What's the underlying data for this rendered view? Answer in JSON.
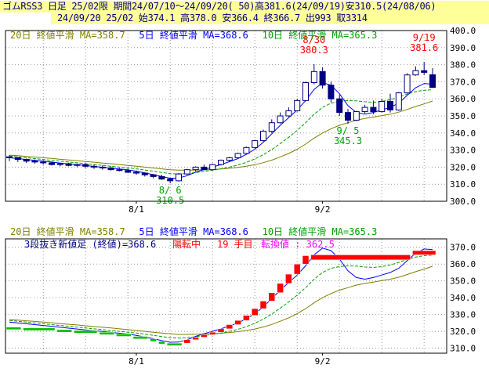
{
  "header": {
    "line1": "ゴムRSS3 日足 25/02限 期間24/07/10～24/09/20( 50)高381.6(24/09/19)安310.5(24/08/06)",
    "line2": "24/09/20 25/02 始374.1 高378.0 安366.4 終366.7 出993 取3314"
  },
  "colors": {
    "header_bg": "#ffff99",
    "grid": "#9a9a9a",
    "ma20": "#808000",
    "ma5": "#0000ff",
    "ma10": "#00a000",
    "candle_up": "#ffffff",
    "candle_down": "#000080",
    "up_block": "#ff0000",
    "down_block": "#00c000",
    "annot_red": "#ff0000",
    "annot_green": "#00a000",
    "tenkan": "#ff00ff"
  },
  "chart_data": [
    {
      "type": "candlestick",
      "legend": [
        {
          "label": "20日 終値平滑 MA=358.7",
          "color": "#808000"
        },
        {
          "label": "5日 終値平滑 MA=368.6",
          "color": "#0000ff"
        },
        {
          "label": "10日 終値平滑 MA=365.3",
          "color": "#00a000"
        }
      ],
      "x_ticks": [
        {
          "index": 15,
          "label": "8/1"
        },
        {
          "index": 37,
          "label": "9/2"
        }
      ],
      "y_ticks": [
        300.0,
        310.0,
        320.0,
        330.0,
        340.0,
        350.0,
        360.0,
        370.0,
        380.0,
        390.0,
        400.0
      ],
      "y_tick_labels": [
        "300.0",
        "310.0",
        "320.0",
        "330.0",
        "340.0",
        "350.0",
        "360.0",
        "370.0",
        "380.0",
        "390.0",
        "400.0"
      ],
      "ylim": [
        300,
        400
      ],
      "annotations": [
        {
          "date": "8/ 6",
          "value": "310.5",
          "index": 19,
          "kind": "low"
        },
        {
          "date": "8/30",
          "value": "380.3",
          "index": 36,
          "kind": "high"
        },
        {
          "date": "9/ 5",
          "value": "345.3",
          "index": 40,
          "kind": "low"
        },
        {
          "date": "9/19",
          "value": "381.6",
          "index": 49,
          "kind": "high"
        }
      ],
      "candles": [
        [
          326.0,
          327.0,
          323.5,
          325.5
        ],
        [
          325.5,
          326.0,
          323.0,
          324.5
        ],
        [
          324.5,
          325.0,
          322.5,
          323.5
        ],
        [
          323.5,
          324.5,
          322.0,
          323.0
        ],
        [
          323.0,
          324.0,
          321.5,
          322.5
        ],
        [
          322.5,
          323.0,
          321.0,
          321.5
        ],
        [
          321.5,
          322.5,
          320.5,
          322.0
        ],
        [
          322.0,
          322.5,
          320.5,
          321.0
        ],
        [
          321.0,
          322.0,
          320.0,
          321.5
        ],
        [
          321.5,
          322.0,
          319.5,
          320.5
        ],
        [
          320.5,
          321.5,
          319.0,
          320.0
        ],
        [
          320.0,
          321.0,
          318.5,
          319.5
        ],
        [
          319.5,
          320.5,
          318.0,
          318.5
        ],
        [
          318.5,
          319.5,
          317.5,
          318.0
        ],
        [
          318.0,
          319.0,
          316.5,
          317.0
        ],
        [
          317.0,
          318.0,
          315.5,
          316.5
        ],
        [
          316.5,
          317.0,
          314.5,
          315.5
        ],
        [
          315.5,
          316.0,
          313.5,
          314.5
        ],
        [
          314.5,
          315.5,
          312.5,
          313.0
        ],
        [
          313.0,
          314.0,
          310.5,
          312.0
        ],
        [
          312.0,
          316.5,
          311.5,
          316.0
        ],
        [
          316.0,
          319.0,
          315.5,
          318.5
        ],
        [
          318.5,
          320.5,
          317.5,
          320.0
        ],
        [
          320.0,
          321.5,
          319.0,
          318.5
        ],
        [
          318.5,
          322.0,
          318.0,
          321.5
        ],
        [
          321.5,
          324.5,
          321.0,
          324.0
        ],
        [
          324.0,
          326.0,
          323.0,
          325.5
        ],
        [
          325.5,
          328.5,
          325.0,
          328.0
        ],
        [
          328.0,
          332.0,
          327.5,
          331.5
        ],
        [
          331.5,
          336.0,
          331.0,
          335.5
        ],
        [
          335.5,
          342.0,
          335.0,
          341.0
        ],
        [
          341.0,
          348.0,
          340.0,
          346.0
        ],
        [
          346.0,
          352.0,
          345.5,
          350.0
        ],
        [
          350.0,
          355.0,
          349.5,
          353.0
        ],
        [
          353.0,
          360.0,
          352.5,
          359.0
        ],
        [
          359.0,
          370.0,
          358.5,
          369.5
        ],
        [
          369.5,
          380.3,
          368.5,
          376.0
        ],
        [
          376.0,
          378.5,
          366.0,
          368.0
        ],
        [
          368.0,
          370.0,
          358.0,
          360.0
        ],
        [
          360.0,
          362.5,
          350.0,
          352.0
        ],
        [
          352.0,
          354.0,
          345.3,
          347.5
        ],
        [
          347.5,
          353.0,
          347.0,
          352.5
        ],
        [
          352.5,
          356.5,
          351.5,
          355.0
        ],
        [
          355.0,
          359.0,
          351.0,
          352.5
        ],
        [
          352.5,
          360.0,
          352.0,
          358.5
        ],
        [
          358.5,
          363.0,
          352.0,
          353.5
        ],
        [
          353.5,
          364.0,
          353.0,
          363.5
        ],
        [
          363.5,
          375.0,
          363.0,
          374.0
        ],
        [
          374.0,
          379.0,
          373.5,
          376.5
        ],
        [
          376.5,
          381.6,
          374.0,
          375.5
        ],
        [
          374.1,
          378.0,
          366.4,
          366.7
        ]
      ],
      "ma20": [
        327.0,
        326.7,
        326.3,
        325.9,
        325.5,
        325.1,
        324.6,
        324.2,
        323.8,
        323.3,
        322.9,
        322.4,
        322.0,
        321.5,
        321.0,
        320.5,
        320.0,
        319.5,
        319.0,
        318.5,
        318.2,
        318.2,
        318.3,
        318.4,
        318.6,
        318.9,
        319.3,
        319.8,
        320.5,
        321.4,
        322.6,
        324.1,
        326.0,
        328.0,
        330.5,
        333.5,
        337.0,
        340.0,
        342.5,
        344.5,
        346.0,
        347.5,
        348.5,
        349.3,
        350.2,
        351.0,
        352.2,
        353.8,
        355.5,
        357.0,
        358.7
      ],
      "ma5": [
        325.5,
        325.0,
        324.5,
        324.0,
        323.5,
        323.0,
        322.4,
        321.9,
        321.4,
        320.9,
        320.4,
        319.9,
        319.4,
        318.9,
        318.4,
        317.6,
        316.6,
        315.6,
        314.5,
        313.5,
        313.6,
        315.0,
        317.0,
        318.6,
        320.0,
        321.5,
        323.2,
        325.0,
        327.5,
        330.5,
        334.5,
        339.5,
        344.5,
        349.0,
        353.5,
        359.0,
        365.5,
        369.5,
        368.0,
        363.0,
        356.0,
        352.0,
        351.0,
        352.0,
        353.5,
        355.0,
        357.5,
        362.0,
        366.5,
        369.0,
        368.6
      ],
      "ma10": [
        326.5,
        326.0,
        325.5,
        325.0,
        324.5,
        324.0,
        323.5,
        323.0,
        322.5,
        322.0,
        321.5,
        321.0,
        320.5,
        320.0,
        319.5,
        319.0,
        318.3,
        317.6,
        316.9,
        316.2,
        316.0,
        316.2,
        316.8,
        317.5,
        318.2,
        319.0,
        320.0,
        321.2,
        322.8,
        324.8,
        327.3,
        330.3,
        333.8,
        337.5,
        341.5,
        346.0,
        351.0,
        355.0,
        357.5,
        358.5,
        359.0,
        358.8,
        358.3,
        358.0,
        358.5,
        359.5,
        361.0,
        362.8,
        364.2,
        365.0,
        365.3
      ],
      "x_count": 51
    },
    {
      "type": "three-line-break",
      "legend": [
        {
          "label": "20日 終値平滑 MA=358.7",
          "color": "#808000"
        },
        {
          "label": "5日 終値平滑 MA=368.6",
          "color": "#0000ff"
        },
        {
          "label": "10日 終値平滑 MA=365.3",
          "color": "#00a000"
        }
      ],
      "status": {
        "method": "3段抜き新値足 (終値)=368.6",
        "turn": "陽転中",
        "count": "19 手目",
        "tenkan_label": "転換値 : 362.5"
      },
      "x_ticks": [
        {
          "index": 15,
          "label": "8/1"
        },
        {
          "index": 37,
          "label": "9/2"
        }
      ],
      "y_ticks": [
        310,
        320,
        330,
        340,
        350,
        360,
        370
      ],
      "y_tick_labels": [
        "310.0",
        "320.0",
        "330.0",
        "340.0",
        "350.0",
        "360.0",
        "370.0"
      ],
      "ylim": [
        307,
        375
      ],
      "blocks": [
        {
          "dir": "down",
          "low": 321.0,
          "high": 322.5,
          "start": 0,
          "end": 2
        },
        {
          "dir": "down",
          "low": 320.5,
          "high": 322.0,
          "start": 2,
          "end": 6
        },
        {
          "dir": "down",
          "low": 319.5,
          "high": 321.0,
          "start": 6,
          "end": 8
        },
        {
          "dir": "down",
          "low": 319.0,
          "high": 320.5,
          "start": 8,
          "end": 11
        },
        {
          "dir": "down",
          "low": 318.0,
          "high": 319.5,
          "start": 11,
          "end": 13
        },
        {
          "dir": "down",
          "low": 317.0,
          "high": 318.5,
          "start": 13,
          "end": 15
        },
        {
          "dir": "down",
          "low": 315.5,
          "high": 317.0,
          "start": 15,
          "end": 17
        },
        {
          "dir": "down",
          "low": 314.0,
          "high": 315.5,
          "start": 17,
          "end": 18
        },
        {
          "dir": "down",
          "low": 312.5,
          "high": 314.0,
          "start": 18,
          "end": 19
        },
        {
          "dir": "down",
          "low": 311.5,
          "high": 313.0,
          "start": 19,
          "end": 21
        },
        {
          "dir": "up",
          "low": 313.0,
          "high": 315.0,
          "start": 21,
          "end": 22
        },
        {
          "dir": "up",
          "low": 315.0,
          "high": 316.5,
          "start": 22,
          "end": 23
        },
        {
          "dir": "up",
          "low": 316.5,
          "high": 318.0,
          "start": 23,
          "end": 24
        },
        {
          "dir": "up",
          "low": 318.0,
          "high": 319.5,
          "start": 24,
          "end": 25
        },
        {
          "dir": "up",
          "low": 319.5,
          "high": 321.5,
          "start": 25,
          "end": 26
        },
        {
          "dir": "up",
          "low": 321.5,
          "high": 324.0,
          "start": 26,
          "end": 27
        },
        {
          "dir": "up",
          "low": 324.0,
          "high": 326.5,
          "start": 27,
          "end": 28
        },
        {
          "dir": "up",
          "low": 326.5,
          "high": 329.5,
          "start": 28,
          "end": 29
        },
        {
          "dir": "up",
          "low": 329.5,
          "high": 333.5,
          "start": 29,
          "end": 30
        },
        {
          "dir": "up",
          "low": 333.5,
          "high": 338.0,
          "start": 30,
          "end": 31
        },
        {
          "dir": "up",
          "low": 338.0,
          "high": 343.0,
          "start": 31,
          "end": 32
        },
        {
          "dir": "up",
          "low": 343.0,
          "high": 348.5,
          "start": 32,
          "end": 33
        },
        {
          "dir": "up",
          "low": 348.5,
          "high": 354.0,
          "start": 33,
          "end": 34
        },
        {
          "dir": "up",
          "low": 354.0,
          "high": 360.0,
          "start": 34,
          "end": 35
        },
        {
          "dir": "up",
          "low": 360.0,
          "high": 365.0,
          "start": 35,
          "end": 36
        },
        {
          "dir": "up",
          "low": 362.5,
          "high": 365.5,
          "start": 36,
          "end": 48
        },
        {
          "dir": "up",
          "low": 365.5,
          "high": 368.0,
          "start": 48,
          "end": 51
        }
      ],
      "tenkan_value": 362.5,
      "ma20": [
        327.0,
        326.7,
        326.3,
        325.9,
        325.5,
        325.1,
        324.6,
        324.2,
        323.8,
        323.3,
        322.9,
        322.4,
        322.0,
        321.5,
        321.0,
        320.5,
        320.0,
        319.5,
        319.0,
        318.5,
        318.2,
        318.2,
        318.3,
        318.4,
        318.6,
        318.9,
        319.3,
        319.8,
        320.5,
        321.4,
        322.6,
        324.1,
        326.0,
        328.0,
        330.5,
        333.5,
        337.0,
        340.0,
        342.5,
        344.5,
        346.0,
        347.5,
        348.5,
        349.3,
        350.2,
        351.0,
        352.2,
        353.8,
        355.5,
        357.0,
        358.7
      ],
      "ma5": [
        325.5,
        325.0,
        324.5,
        324.0,
        323.5,
        323.0,
        322.4,
        321.9,
        321.4,
        320.9,
        320.4,
        319.9,
        319.4,
        318.9,
        318.4,
        317.6,
        316.6,
        315.6,
        314.5,
        313.5,
        313.6,
        315.0,
        317.0,
        318.6,
        320.0,
        321.5,
        323.2,
        325.0,
        327.5,
        330.5,
        334.5,
        339.5,
        344.5,
        349.0,
        353.5,
        359.0,
        365.5,
        369.5,
        368.0,
        363.0,
        356.0,
        352.0,
        351.0,
        352.0,
        353.5,
        355.0,
        357.5,
        362.0,
        366.5,
        369.0,
        368.6
      ],
      "ma10": [
        326.5,
        326.0,
        325.5,
        325.0,
        324.5,
        324.0,
        323.5,
        323.0,
        322.5,
        322.0,
        321.5,
        321.0,
        320.5,
        320.0,
        319.5,
        319.0,
        318.3,
        317.6,
        316.9,
        316.2,
        316.0,
        316.2,
        316.8,
        317.5,
        318.2,
        319.0,
        320.0,
        321.2,
        322.8,
        324.8,
        327.3,
        330.3,
        333.8,
        337.5,
        341.5,
        346.0,
        351.0,
        355.0,
        357.5,
        358.5,
        359.0,
        358.8,
        358.3,
        358.0,
        358.5,
        359.5,
        361.0,
        362.8,
        364.2,
        365.0,
        365.3
      ],
      "x_count": 51
    }
  ]
}
